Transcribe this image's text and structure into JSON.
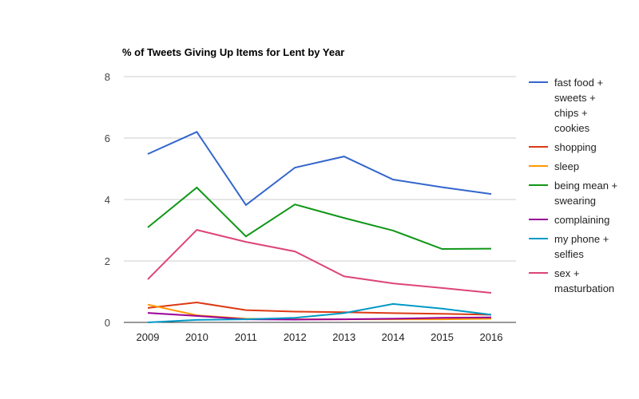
{
  "chart_data": {
    "type": "line",
    "title": "% of Tweets Giving Up Items for Lent by Year",
    "xlabel": "",
    "ylabel": "",
    "ylim": [
      0,
      8
    ],
    "yticks": [
      0,
      2,
      4,
      6,
      8
    ],
    "grid": true,
    "legend_position": "right",
    "x": [
      "2009",
      "2010",
      "2011",
      "2012",
      "2013",
      "2014",
      "2015",
      "2016"
    ],
    "series": [
      {
        "name": "fast food + sweets + chips + cookies",
        "legend_lines": [
          "fast food +",
          "sweets +",
          "chips +",
          "cookies"
        ],
        "color": "#3366cc",
        "values": [
          5.48,
          6.2,
          3.82,
          5.04,
          5.4,
          4.65,
          4.4,
          4.18
        ]
      },
      {
        "name": "shopping",
        "legend_lines": [
          "shopping"
        ],
        "color": "#dc3912",
        "values": [
          0.47,
          0.65,
          0.4,
          0.35,
          0.33,
          0.3,
          0.28,
          0.25
        ]
      },
      {
        "name": "sleep",
        "legend_lines": [
          "sleep"
        ],
        "color": "#ff9900",
        "values": [
          0.58,
          0.23,
          0.12,
          0.1,
          0.1,
          0.1,
          0.1,
          0.12
        ]
      },
      {
        "name": "being mean + swearing",
        "legend_lines": [
          "being mean +",
          "swearing"
        ],
        "color": "#109618",
        "values": [
          3.09,
          4.39,
          2.8,
          3.84,
          3.4,
          2.99,
          2.39,
          2.4
        ]
      },
      {
        "name": "complaining",
        "legend_lines": [
          "complaining"
        ],
        "color": "#990099",
        "values": [
          0.31,
          0.21,
          0.1,
          0.09,
          0.1,
          0.12,
          0.15,
          0.16
        ]
      },
      {
        "name": "my phone + selfies",
        "legend_lines": [
          "my phone +",
          "selfies"
        ],
        "color": "#0099c6",
        "values": [
          0,
          0.08,
          0.1,
          0.15,
          0.3,
          0.6,
          0.45,
          0.25
        ]
      },
      {
        "name": "sex + masturbation",
        "legend_lines": [
          "sex +",
          "masturbation"
        ],
        "color": "#dd4477",
        "values": [
          1.4,
          3.01,
          2.62,
          2.31,
          1.5,
          1.27,
          1.12,
          0.96
        ]
      }
    ]
  }
}
